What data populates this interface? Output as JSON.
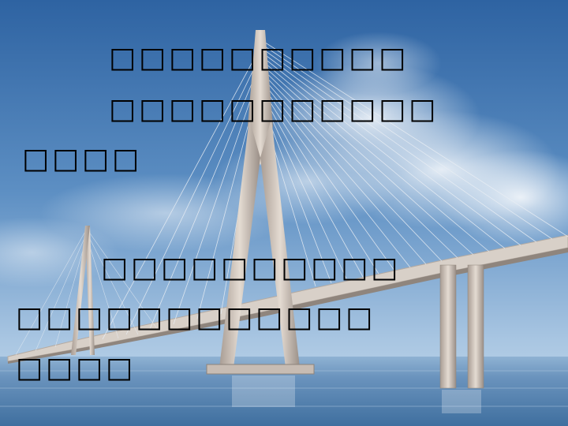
{
  "slide": {
    "paragraph1": {
      "line1": "□□□□□□□□□□",
      "line2": "□□□□□□□□□□□",
      "line3": "□□□□"
    },
    "paragraph2": {
      "line1": "□□□□□□□□□□",
      "line2": "□□□□□□□□□□□□",
      "line3": "□□□□"
    }
  },
  "image": {
    "subject": "cable-stayed-bridge-icon",
    "colors": {
      "sky_top": "#2f63a3",
      "sky_mid": "#6f9fce",
      "sky_horizon": "#b9d1e6",
      "sea": "#5a86b3",
      "tower": "#c9bdb4",
      "deck": "#d7cfc7"
    }
  }
}
